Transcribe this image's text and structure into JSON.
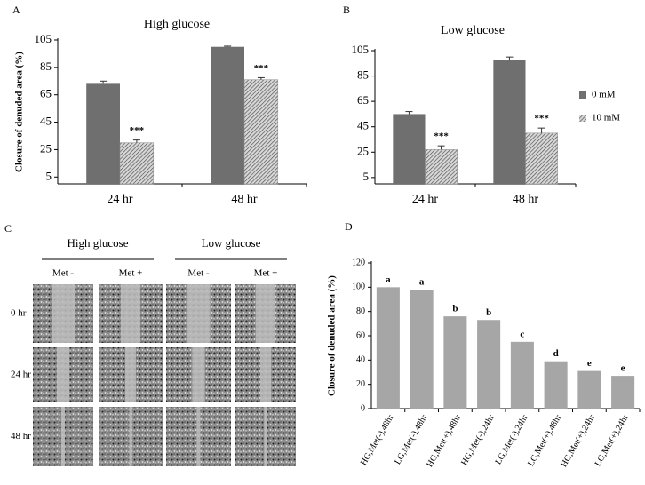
{
  "chart_data": [
    {
      "type": "bar",
      "panel": "A",
      "title": "High glucose",
      "ylabel": "Closure of denuded area (%)",
      "categories": [
        "24 hr",
        "48 hr"
      ],
      "series": [
        {
          "name": "0 mM",
          "color": "#6f6f6f",
          "hatch": false,
          "values": [
            73,
            100
          ],
          "errors": [
            2,
            0.5
          ]
        },
        {
          "name": "10 mM",
          "color": "#8a8a8a",
          "hatch": true,
          "values": [
            30,
            76
          ],
          "errors": [
            2,
            1.5
          ],
          "annotations": [
            "***",
            "***"
          ]
        }
      ],
      "ylim": [
        0,
        105
      ],
      "yticks": [
        5,
        25,
        45,
        65,
        85,
        105
      ],
      "legend": "none"
    },
    {
      "type": "bar",
      "panel": "B",
      "title": "Low glucose",
      "categories": [
        "24 hr",
        "48 hr"
      ],
      "series": [
        {
          "name": "0 mM",
          "color": "#6f6f6f",
          "hatch": false,
          "values": [
            55,
            98
          ],
          "errors": [
            2,
            2
          ]
        },
        {
          "name": "10 mM",
          "color": "#8a8a8a",
          "hatch": true,
          "values": [
            27,
            40
          ],
          "errors": [
            3,
            4
          ],
          "annotations": [
            "***",
            "***"
          ]
        }
      ],
      "ylim": [
        0,
        105
      ],
      "yticks": [
        5,
        25,
        45,
        65,
        85,
        105
      ],
      "legend": "right"
    },
    {
      "type": "bar",
      "panel": "D",
      "ylabel": "Closure of denuded area (%)",
      "categories": [
        "HG,Met(-),48hr",
        "LG,Met(-),48hr",
        "HG,Met(+),48hr",
        "HG,Met(-),24hr",
        "LG,Met(-),24hr",
        "LG,Met(+),48hr",
        "HG,Met(+),24hr",
        "LG,Met(+),24hr"
      ],
      "series": [
        {
          "name": null,
          "color": "#a6a6a6",
          "hatch": false,
          "values": [
            100,
            98,
            76,
            73,
            55,
            39,
            31,
            27
          ],
          "annotations": [
            "a",
            "a",
            "b",
            "b",
            "c",
            "d",
            "e",
            "e"
          ]
        }
      ],
      "ylim": [
        0,
        120
      ],
      "yticks": [
        0,
        20,
        40,
        60,
        80,
        100,
        120
      ],
      "legend": "none"
    }
  ],
  "image_panel": {
    "panel": "C",
    "groups": [
      "High glucose",
      "Low glucose"
    ],
    "columns": [
      "Met -",
      "Met +",
      "Met -",
      "Met +"
    ],
    "rows": [
      "0 hr",
      "24 hr",
      "48 hr"
    ]
  }
}
